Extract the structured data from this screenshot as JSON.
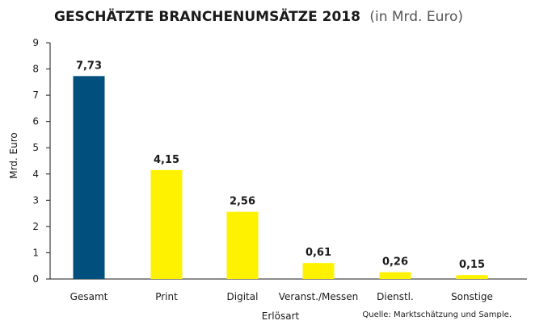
{
  "chart_data": {
    "type": "bar",
    "title": "GESCHÄTZTE BRANCHENUMSÄTZE 2018",
    "subtitle": "(in Mrd. Euro)",
    "xlabel": "Erlösart",
    "ylabel": "Mrd. Euro",
    "ylim": [
      0,
      9
    ],
    "yticks": [
      0,
      1,
      2,
      3,
      4,
      5,
      6,
      7,
      8,
      9
    ],
    "categories": [
      "Gesamt",
      "Print",
      "Digital",
      "Veranst./Messen",
      "Dienstl.",
      "Sonstige"
    ],
    "values": [
      7.73,
      4.15,
      2.56,
      0.61,
      0.26,
      0.15
    ],
    "data_labels": [
      "7,73",
      "4,15",
      "2,56",
      "0,61",
      "0,26",
      "0,15"
    ],
    "colors": [
      "#004f7c",
      "#fff200",
      "#fff200",
      "#fff200",
      "#fff200",
      "#fff200"
    ],
    "grid": false,
    "source": "Quelle: Marktschätzung und Sample."
  }
}
